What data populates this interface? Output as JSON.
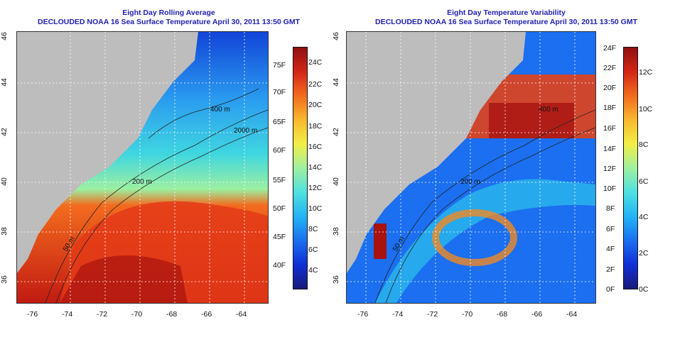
{
  "left": {
    "title1": "Eight Day Rolling Average",
    "title2": "DECLOUDED NOAA 16 Sea Surface Temperature April 30, 2011 13:50 GMT",
    "colorbar": {
      "colors": [
        "#1a1a7a",
        "#0f2fd6",
        "#1b6ff0",
        "#22b4f5",
        "#4fe0e0",
        "#9ff0a0",
        "#f2ef46",
        "#f8b82c",
        "#f36b1f",
        "#d32616",
        "#8f1010"
      ],
      "f_labels": [
        "75F",
        "70F",
        "65F",
        "60F",
        "55F",
        "50F",
        "45F",
        "40F"
      ],
      "c_labels": [
        "24C",
        "22C",
        "20C",
        "18C",
        "16C",
        "14C",
        "12C",
        "10C",
        "8C",
        "6C",
        "4C"
      ]
    }
  },
  "right": {
    "title1": "Eight Day Temperature Variability",
    "title2": "DECLOUDED NOAA 16 Sea Surface Temperature April 30, 2011 13:50 GMT",
    "colorbar": {
      "colors": [
        "#1a1a7a",
        "#0f2fd6",
        "#1b6ff0",
        "#22b4f5",
        "#4fe0e0",
        "#9ff0a0",
        "#f2ef46",
        "#f8b82c",
        "#f36b1f",
        "#d32616",
        "#8f1010"
      ],
      "f_labels": [
        "24F",
        "22F",
        "20F",
        "18F",
        "16F",
        "14F",
        "12F",
        "10F",
        "8F",
        "6F",
        "4F",
        "2F",
        "0F"
      ],
      "c_labels": [
        "12C",
        "10C",
        "8C",
        "6C",
        "4C",
        "2C",
        "0C"
      ]
    }
  },
  "axes": {
    "x_ticks": [
      "-76",
      "-74",
      "-72",
      "-70",
      "-68",
      "-66",
      "-64"
    ],
    "y_ticks": [
      "46",
      "44",
      "42",
      "40",
      "38",
      "36"
    ]
  },
  "contours": [
    "400 m",
    "2000 m",
    "200 m",
    "50 m"
  ]
}
